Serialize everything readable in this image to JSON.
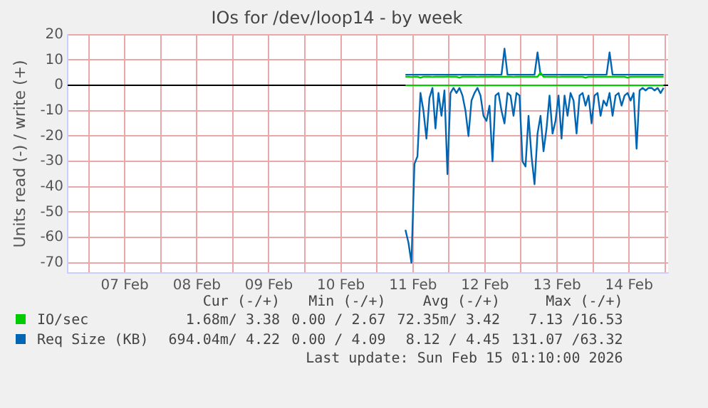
{
  "chart_data": {
    "type": "line",
    "title": "IOs for /dev/loop14 - by week",
    "ylabel": "Units read (-) / write (+)",
    "x": [
      "2026-02-11T09:30",
      "2026-02-11T10:30",
      "2026-02-11T11:30",
      "2026-02-11T12:30",
      "2026-02-11T13:30",
      "2026-02-11T14:30",
      "2026-02-11T15:30",
      "2026-02-11T16:30",
      "2026-02-11T17:30",
      "2026-02-11T18:30",
      "2026-02-11T19:30",
      "2026-02-11T20:30",
      "2026-02-11T21:30",
      "2026-02-11T22:30",
      "2026-02-11T23:30",
      "2026-02-12T00:30",
      "2026-02-12T01:30",
      "2026-02-12T02:30",
      "2026-02-12T03:30",
      "2026-02-12T04:30",
      "2026-02-12T05:30",
      "2026-02-12T06:30",
      "2026-02-12T07:30",
      "2026-02-12T08:30",
      "2026-02-12T09:30",
      "2026-02-12T10:30",
      "2026-02-12T11:30",
      "2026-02-12T12:30",
      "2026-02-12T13:30",
      "2026-02-12T14:30",
      "2026-02-12T15:30",
      "2026-02-12T16:30",
      "2026-02-12T17:30",
      "2026-02-12T18:30",
      "2026-02-12T19:30",
      "2026-02-12T20:30",
      "2026-02-12T21:30",
      "2026-02-12T22:30",
      "2026-02-12T23:30",
      "2026-02-13T00:30",
      "2026-02-13T01:30",
      "2026-02-13T02:30",
      "2026-02-13T03:30",
      "2026-02-13T04:30",
      "2026-02-13T05:30",
      "2026-02-13T06:30",
      "2026-02-13T07:30",
      "2026-02-13T08:30",
      "2026-02-13T09:30",
      "2026-02-13T10:30",
      "2026-02-13T11:30",
      "2026-02-13T12:30",
      "2026-02-13T13:30",
      "2026-02-13T14:30",
      "2026-02-13T15:30",
      "2026-02-13T16:30",
      "2026-02-13T17:30",
      "2026-02-13T18:30",
      "2026-02-13T19:30",
      "2026-02-13T20:30",
      "2026-02-13T21:30",
      "2026-02-13T22:30",
      "2026-02-13T23:30",
      "2026-02-14T00:30",
      "2026-02-14T01:30",
      "2026-02-14T02:30",
      "2026-02-14T03:30",
      "2026-02-14T04:30",
      "2026-02-14T05:30",
      "2026-02-14T06:30",
      "2026-02-14T07:30",
      "2026-02-14T08:30",
      "2026-02-14T09:30",
      "2026-02-14T10:30",
      "2026-02-14T11:30",
      "2026-02-14T12:30",
      "2026-02-14T13:30",
      "2026-02-14T14:30",
      "2026-02-14T15:30",
      "2026-02-14T16:30",
      "2026-02-14T17:30",
      "2026-02-14T18:30",
      "2026-02-14T19:30",
      "2026-02-14T20:30",
      "2026-02-14T21:30",
      "2026-02-14T22:30",
      "2026-02-14T23:30"
    ],
    "series": [
      {
        "name": "IO/sec",
        "color": "#00cc00",
        "values": [
          3.4,
          3.4,
          3.3,
          3.4,
          3.4,
          3.0,
          3.4,
          3.4,
          3.4,
          3.3,
          3.4,
          3.4,
          3.4,
          3.4,
          3.5,
          3.4,
          3.4,
          3.4,
          3.0,
          3.4,
          3.4,
          3.4,
          3.4,
          3.4,
          3.3,
          3.4,
          3.4,
          3.4,
          3.4,
          3.5,
          3.4,
          3.4,
          3.4,
          3.4,
          3.4,
          3.4,
          3.3,
          3.4,
          3.4,
          3.4,
          3.4,
          3.4,
          3.4,
          3.4,
          3.4,
          5.0,
          3.4,
          3.4,
          3.4,
          3.4,
          3.4,
          3.3,
          3.4,
          3.4,
          3.4,
          3.4,
          3.4,
          3.4,
          3.4,
          3.4,
          3.0,
          3.4,
          3.4,
          3.4,
          3.4,
          3.4,
          3.4,
          3.4,
          3.4,
          3.4,
          3.4,
          3.4,
          3.4,
          3.4,
          3.0,
          3.4,
          3.4,
          3.4,
          3.4,
          3.4,
          3.4,
          3.4,
          3.4,
          3.4,
          3.4,
          3.4,
          3.4
        ]
      },
      {
        "color": "#00cc00",
        "values": [
          0,
          0,
          0,
          0,
          0,
          0,
          0,
          0,
          0,
          0,
          0,
          0,
          0,
          0,
          0,
          0,
          0,
          0,
          0,
          0,
          0,
          0,
          0,
          0,
          0,
          0,
          0,
          0,
          0,
          0,
          0,
          0,
          0,
          0,
          0,
          0,
          0,
          0,
          0,
          0,
          0,
          0,
          0,
          0,
          0,
          0,
          0,
          0,
          0,
          0,
          0,
          0,
          0,
          0,
          0,
          0,
          0,
          0,
          0,
          0,
          0,
          0,
          0,
          0,
          0,
          0,
          0,
          0,
          0,
          0,
          0,
          0,
          0,
          0,
          0,
          0,
          0,
          0,
          0,
          0,
          0,
          0,
          0,
          0,
          0,
          0,
          0
        ]
      },
      {
        "name": "Req Size (KB)",
        "color": "#0066b3",
        "values": [
          4.2,
          4.2,
          4.2,
          4.2,
          4.2,
          4.2,
          4.2,
          4.2,
          4.2,
          4.2,
          4.2,
          4.2,
          4.2,
          4.2,
          4.2,
          4.2,
          4.2,
          4.2,
          4.2,
          4.2,
          4.2,
          4.2,
          4.2,
          4.2,
          4.2,
          4.2,
          4.2,
          4.2,
          4.2,
          4.2,
          4.2,
          4.2,
          4.2,
          14.5,
          4.2,
          4.2,
          4.2,
          4.2,
          4.2,
          4.2,
          4.2,
          4.2,
          4.2,
          4.2,
          13,
          4.2,
          4.2,
          4.2,
          4.2,
          4.2,
          4.2,
          4.2,
          4.2,
          4.2,
          4.2,
          4.2,
          4.2,
          4.2,
          4.2,
          4.2,
          4.2,
          4.2,
          4.2,
          4.2,
          4.2,
          4.2,
          4.2,
          4.2,
          13,
          4.2,
          4.2,
          4.2,
          4.2,
          4.2,
          4.2,
          4.2,
          4.2,
          4.2,
          4.2,
          4.2,
          4.2,
          4.2,
          4.2,
          4.2,
          4.2,
          4.2,
          4.2
        ]
      },
      {
        "color": "#0066b3",
        "values": [
          -57,
          -62,
          -70,
          -31,
          -28,
          -3,
          -10,
          -21,
          -5,
          -1,
          -17,
          -3,
          -12,
          -2,
          -35,
          -3,
          -1,
          -3,
          -1,
          -4,
          -10,
          -20,
          -6,
          -3,
          -1,
          -4,
          -12,
          -14,
          -8,
          -30,
          -4,
          -3,
          -10,
          -15,
          -3,
          -4,
          -12,
          -3,
          -4,
          -30,
          -32,
          -12,
          -28,
          -39,
          -19,
          -12,
          -26,
          -17,
          -4,
          -19,
          -14,
          -4,
          -21,
          -4,
          -12,
          -3,
          -6,
          -19,
          -4,
          -3,
          -8,
          -4,
          -15,
          -4,
          -3,
          -12,
          -6,
          -8,
          -3,
          -12,
          -4,
          -3,
          -8,
          -4,
          -3,
          -6,
          -3,
          -25,
          -2,
          -1,
          -2,
          -1,
          -1,
          -2,
          -1,
          -3,
          -1
        ]
      }
    ],
    "xlim": [
      "2026-02-06T17:00",
      "2026-02-15T01:00"
    ],
    "xticks": [
      {
        "value": "2026-02-07T00:00",
        "label": null
      },
      {
        "value": "2026-02-07T12:00",
        "label": "07 Feb"
      },
      {
        "value": "2026-02-08T00:00",
        "label": null
      },
      {
        "value": "2026-02-08T12:00",
        "label": "08 Feb"
      },
      {
        "value": "2026-02-09T00:00",
        "label": null
      },
      {
        "value": "2026-02-09T12:00",
        "label": "09 Feb"
      },
      {
        "value": "2026-02-10T00:00",
        "label": null
      },
      {
        "value": "2026-02-10T12:00",
        "label": "10 Feb"
      },
      {
        "value": "2026-02-11T00:00",
        "label": null
      },
      {
        "value": "2026-02-11T12:00",
        "label": "11 Feb"
      },
      {
        "value": "2026-02-12T00:00",
        "label": null
      },
      {
        "value": "2026-02-12T12:00",
        "label": "12 Feb"
      },
      {
        "value": "2026-02-13T00:00",
        "label": null
      },
      {
        "value": "2026-02-13T12:00",
        "label": "13 Feb"
      },
      {
        "value": "2026-02-14T00:00",
        "label": null
      },
      {
        "value": "2026-02-14T12:00",
        "label": "14 Feb"
      },
      {
        "value": "2026-02-15T00:00",
        "label": null
      }
    ],
    "ylim": [
      -74,
      20
    ],
    "yticks": [
      -70,
      -60,
      -50,
      -40,
      -30,
      -20,
      -10,
      0,
      10,
      20
    ],
    "grid": true,
    "legend": "bottom",
    "marker": "none",
    "line_style": "solid",
    "ref_lines": [
      {
        "axis": "y",
        "value": 0,
        "color": "#000000"
      }
    ],
    "annotations": [
      "Cur (-/+)",
      "Min (-/+)",
      "Avg (-/+)",
      "Max (-/+)",
      "1.68m/ 3.38",
      "0.00 / 2.67",
      "72.35m/ 3.42",
      "7.13 /16.53",
      "694.04m/ 4.22",
      "0.00 / 4.09",
      "8.12 / 4.45",
      "131.07 /63.32",
      "Last update: Sun Feb 15 01:10:00 2026"
    ]
  }
}
